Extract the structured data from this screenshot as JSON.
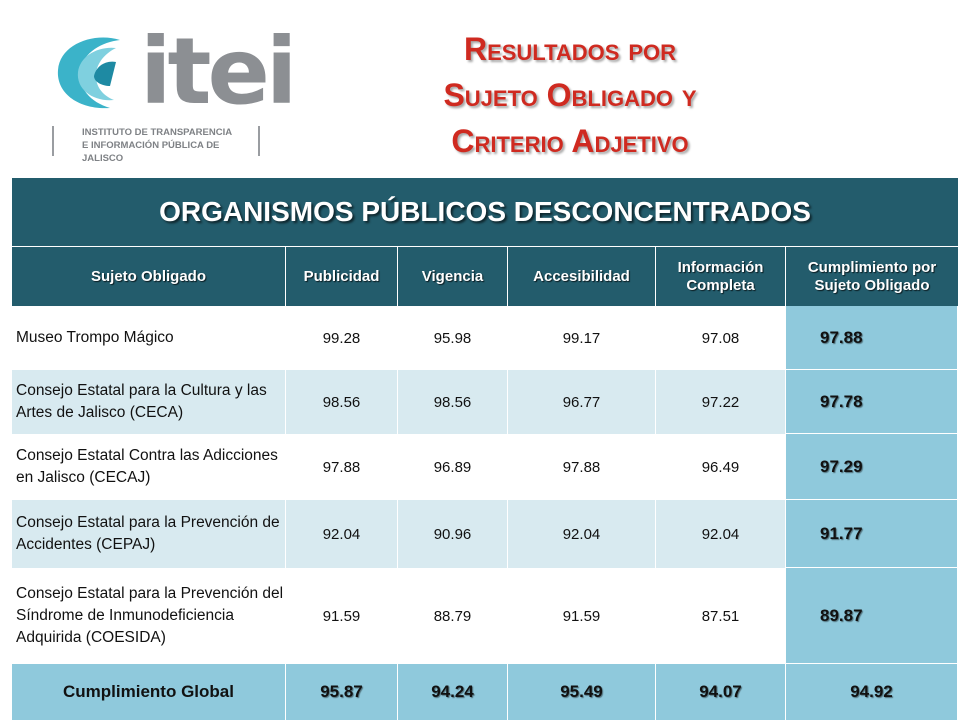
{
  "logo": {
    "wordmark": "itei",
    "subtitle_line1": "INSTITUTO DE TRANSPARENCIA",
    "subtitle_line2": "E INFORMACIÓN PÚBLICA DE JALISCO"
  },
  "title": {
    "line1": "Resultados por",
    "line2": "Sujeto Obligado y",
    "line3": "Criterio Adjetivo"
  },
  "table": {
    "banner": "ORGANISMOS PÚBLICOS DESCONCENTRADOS",
    "headers": [
      "Sujeto Obligado",
      "Publicidad",
      "Vigencia",
      "Accesibilidad",
      "Información Completa",
      "Cumplimiento por Sujeto Obligado"
    ],
    "rows": [
      {
        "name": "Museo Trompo Mágico",
        "publicidad": "99.28",
        "vigencia": "95.98",
        "accesibilidad": "99.17",
        "informacion": "97.08",
        "cumplimiento": "97.88"
      },
      {
        "name": "Consejo Estatal para la Cultura y las Artes de Jalisco (CECA)",
        "publicidad": "98.56",
        "vigencia": "98.56",
        "accesibilidad": "96.77",
        "informacion": "97.22",
        "cumplimiento": "97.78"
      },
      {
        "name": "Consejo Estatal Contra las Adicciones en Jalisco (CECAJ)",
        "publicidad": "97.88",
        "vigencia": "96.89",
        "accesibilidad": "97.88",
        "informacion": "96.49",
        "cumplimiento": "97.29"
      },
      {
        "name": "Consejo Estatal para la Prevención de Accidentes (CEPAJ)",
        "publicidad": "92.04",
        "vigencia": "90.96",
        "accesibilidad": "92.04",
        "informacion": "92.04",
        "cumplimiento": "91.77"
      },
      {
        "name": "Consejo Estatal para la Prevención del Síndrome de Inmunodeficiencia Adquirida (COESIDA)",
        "publicidad": "91.59",
        "vigencia": "88.79",
        "accesibilidad": "91.59",
        "informacion": "87.51",
        "cumplimiento": "89.87"
      }
    ],
    "total": {
      "label": "Cumplimiento Global",
      "publicidad": "95.87",
      "vigencia": "94.24",
      "accesibilidad": "95.49",
      "informacion": "94.07",
      "cumplimiento": "94.92"
    }
  },
  "colors": {
    "header_bg": "#235c6c",
    "row_alt": "#d8eaf0",
    "score_bg": "#8fc9dc",
    "title_red": "#cf2a20",
    "logo_gray": "#8c8f93",
    "logo_teal": "#3bb3c9"
  }
}
